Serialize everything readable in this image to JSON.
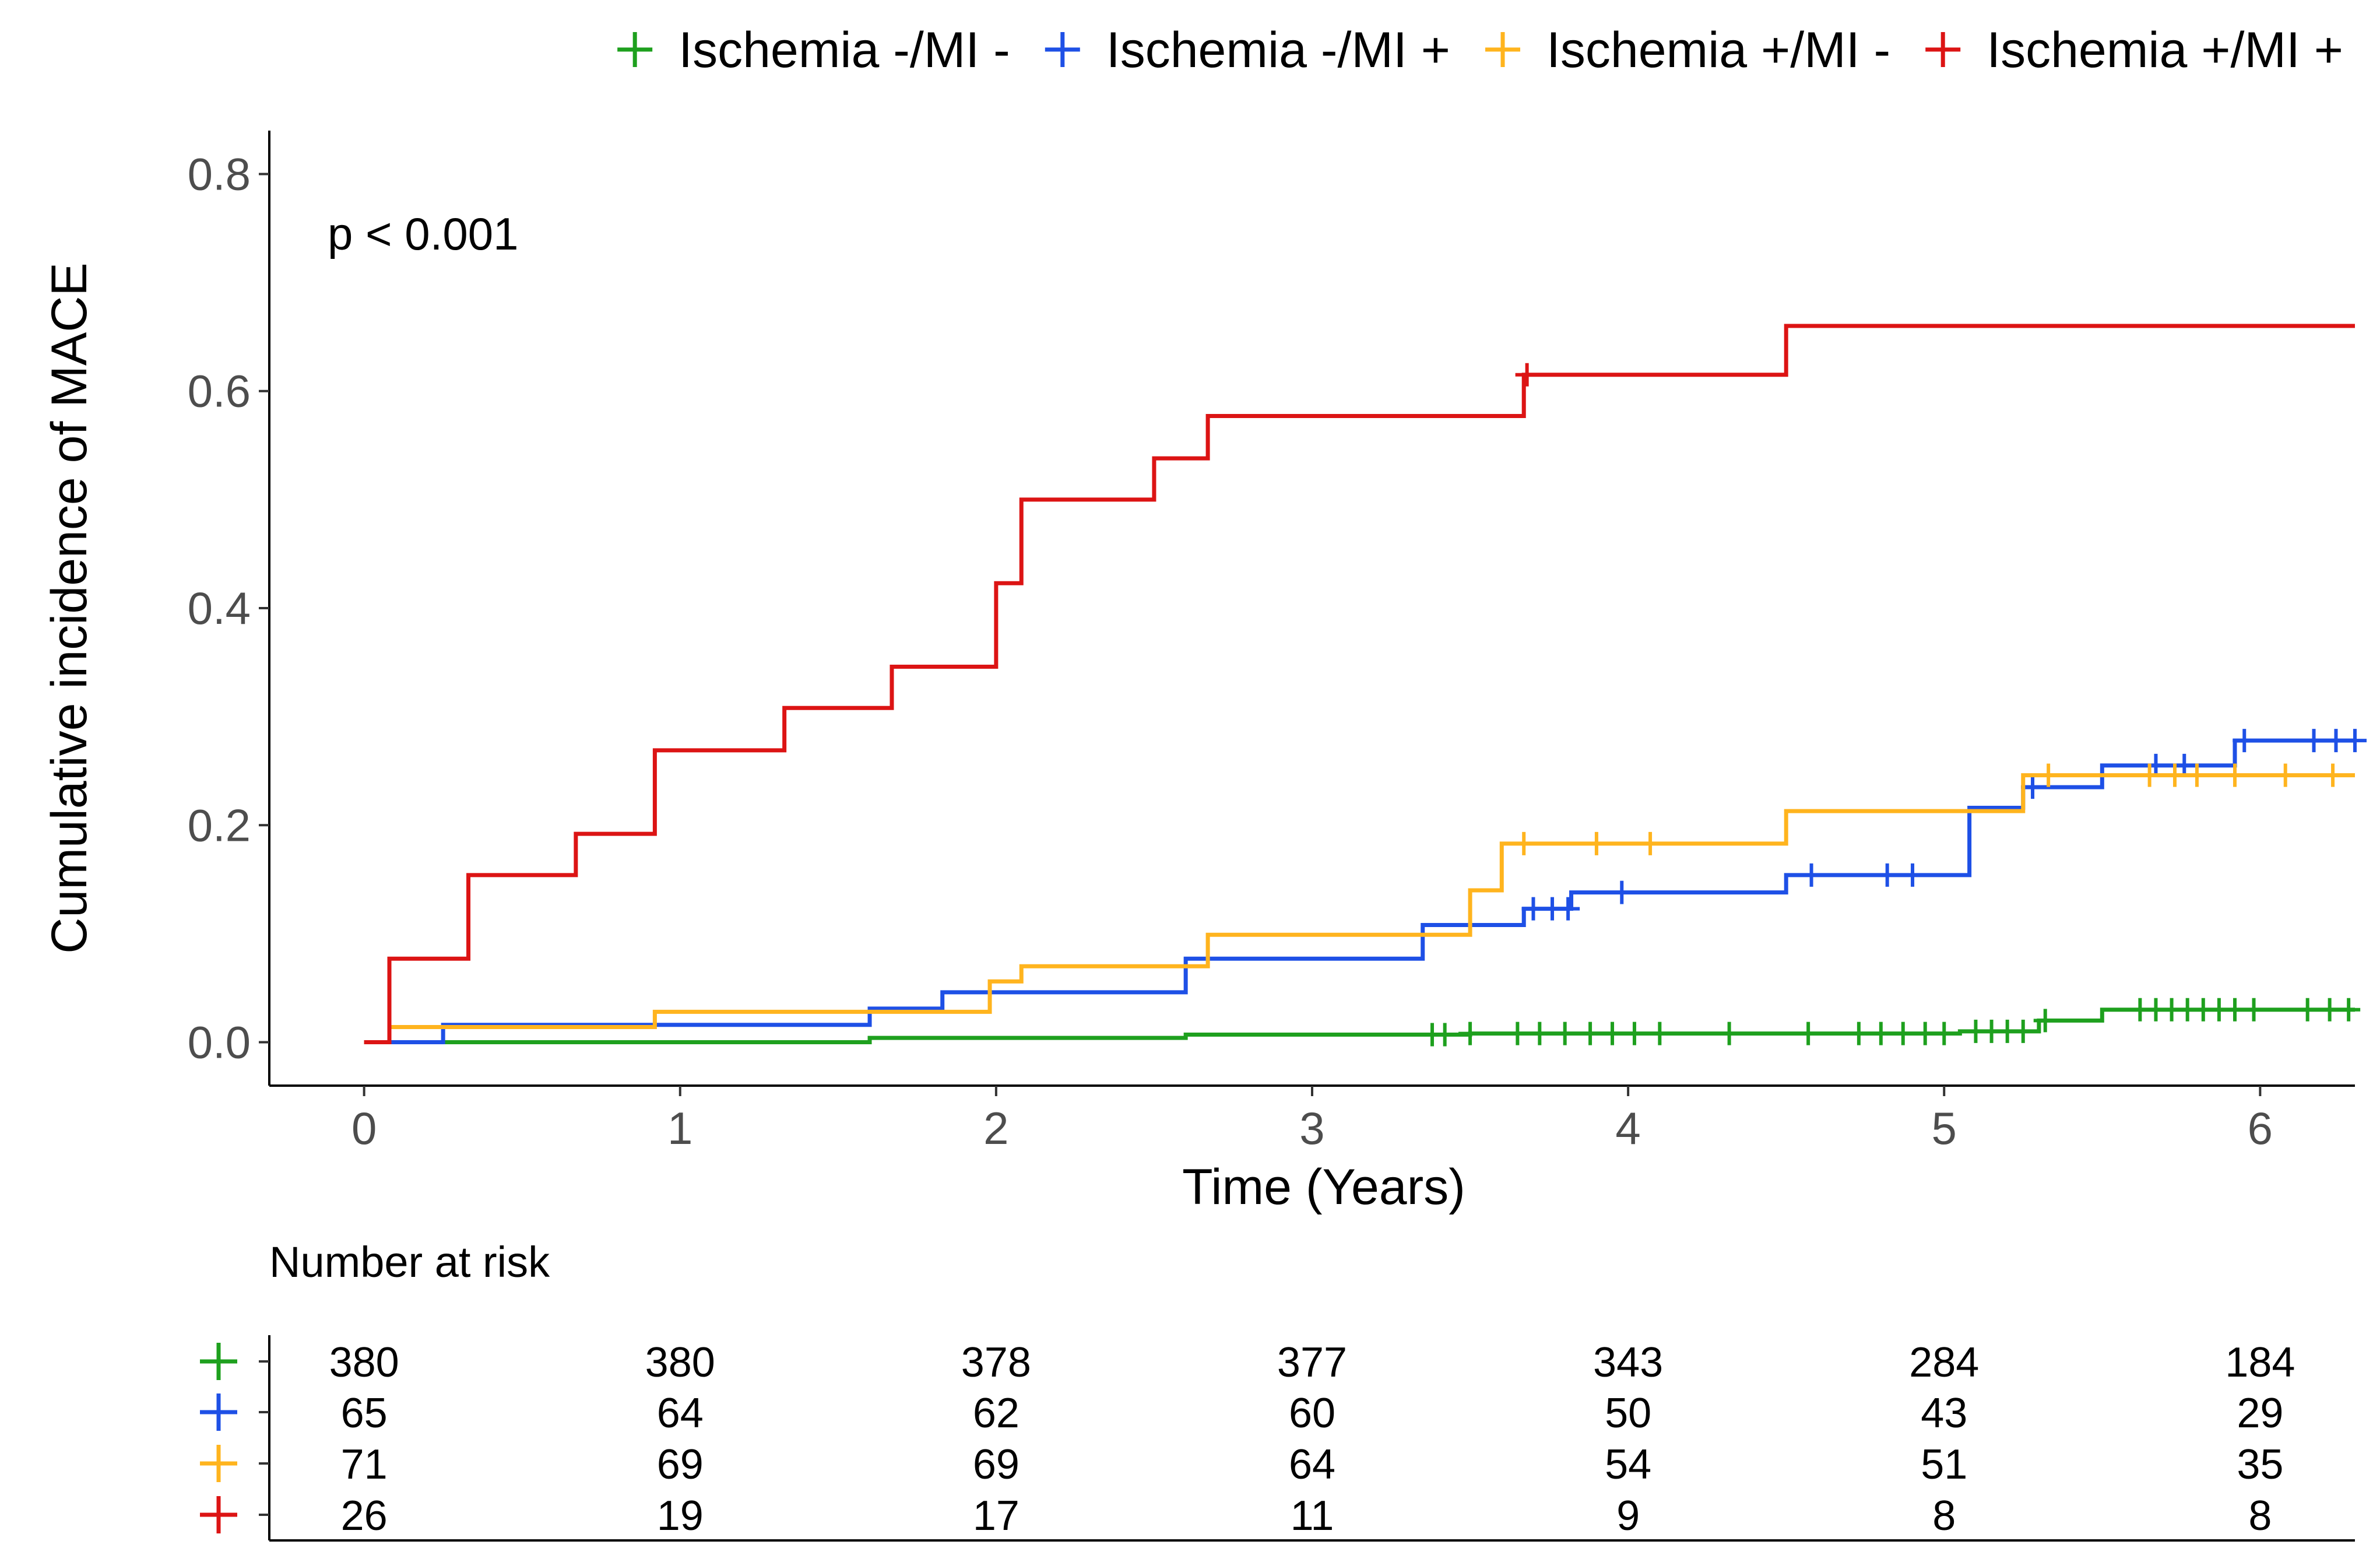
{
  "chart_data": {
    "type": "line",
    "subtype": "step",
    "title": "",
    "xlabel": "Time (Years)",
    "ylabel": "Cumulative incidence of MACE",
    "xlim": [
      -0.3,
      6.3
    ],
    "ylim": [
      -0.04,
      0.84
    ],
    "xticks": [
      0,
      1,
      2,
      3,
      4,
      5,
      6
    ],
    "yticks": [
      0.0,
      0.2,
      0.4,
      0.6,
      0.8
    ],
    "xtick_labels": [
      "0",
      "1",
      "2",
      "3",
      "4",
      "5",
      "6"
    ],
    "ytick_labels": [
      "0.0",
      "0.2",
      "0.4",
      "0.6",
      "0.8"
    ],
    "grid": false,
    "legend_position": "top-right",
    "annotation": "p < 0.001",
    "series": [
      {
        "name": "Ischemia -/MI -",
        "color": "#1ea01e",
        "steps": [
          [
            0,
            0
          ],
          [
            1.6,
            0.004
          ],
          [
            2.6,
            0.007
          ],
          [
            3.5,
            0.008
          ],
          [
            5.05,
            0.01
          ],
          [
            5.3,
            0.02
          ],
          [
            5.5,
            0.03
          ],
          [
            6.3,
            0.03
          ]
        ],
        "censor": [
          3.38,
          3.42,
          3.5,
          3.65,
          3.72,
          3.8,
          3.88,
          3.95,
          4.02,
          4.1,
          4.32,
          4.57,
          4.73,
          4.8,
          4.87,
          4.94,
          5.0,
          5.1,
          5.15,
          5.2,
          5.25,
          5.32,
          5.62,
          5.67,
          5.72,
          5.77,
          5.82,
          5.87,
          5.92,
          5.98,
          6.15,
          6.22,
          6.28
        ]
      },
      {
        "name": "Ischemia -/MI +",
        "color": "#1e50e6",
        "steps": [
          [
            0,
            0
          ],
          [
            0.25,
            0.016
          ],
          [
            1.6,
            0.031
          ],
          [
            1.83,
            0.046
          ],
          [
            2.6,
            0.077
          ],
          [
            3.35,
            0.108
          ],
          [
            3.67,
            0.123
          ],
          [
            3.82,
            0.138
          ],
          [
            4.5,
            0.154
          ],
          [
            5.08,
            0.216
          ],
          [
            5.25,
            0.235
          ],
          [
            5.5,
            0.255
          ],
          [
            5.92,
            0.278
          ],
          [
            6.3,
            0.278
          ]
        ],
        "censor": [
          3.7,
          3.76,
          3.81,
          3.98,
          4.58,
          4.82,
          4.9,
          5.28,
          5.67,
          5.76,
          5.95,
          6.17,
          6.24,
          6.3
        ]
      },
      {
        "name": "Ischemia +/MI -",
        "color": "#ffb41e",
        "steps": [
          [
            0,
            0
          ],
          [
            0.08,
            0.014
          ],
          [
            0.92,
            0.028
          ],
          [
            1.98,
            0.056
          ],
          [
            2.08,
            0.07
          ],
          [
            2.67,
            0.099
          ],
          [
            3.5,
            0.14
          ],
          [
            3.6,
            0.183
          ],
          [
            4.5,
            0.213
          ],
          [
            5.25,
            0.246
          ],
          [
            6.3,
            0.246
          ]
        ],
        "censor": [
          3.67,
          3.9,
          4.07,
          5.33,
          5.65,
          5.73,
          5.8,
          5.92,
          6.08,
          6.23
        ]
      },
      {
        "name": "Ischemia +/MI +",
        "color": "#dc1414",
        "steps": [
          [
            0,
            0
          ],
          [
            0.08,
            0.077
          ],
          [
            0.33,
            0.154
          ],
          [
            0.67,
            0.192
          ],
          [
            0.92,
            0.269
          ],
          [
            1.33,
            0.308
          ],
          [
            1.67,
            0.346
          ],
          [
            2.0,
            0.423
          ],
          [
            2.08,
            0.5
          ],
          [
            2.5,
            0.538
          ],
          [
            2.67,
            0.577
          ],
          [
            3.67,
            0.615
          ],
          [
            4.5,
            0.66
          ],
          [
            6.3,
            0.66
          ]
        ],
        "censor": [
          3.68
        ]
      }
    ],
    "risk_table": {
      "title": "Number at risk",
      "times": [
        0,
        1,
        2,
        3,
        4,
        5,
        6
      ],
      "rows": [
        {
          "name": "Ischemia -/MI -",
          "color": "#1ea01e",
          "values": [
            380,
            380,
            378,
            377,
            343,
            284,
            184
          ]
        },
        {
          "name": "Ischemia -/MI +",
          "color": "#1e50e6",
          "values": [
            65,
            64,
            62,
            60,
            50,
            43,
            29
          ]
        },
        {
          "name": "Ischemia +/MI -",
          "color": "#ffb41e",
          "values": [
            71,
            69,
            69,
            64,
            54,
            51,
            35
          ]
        },
        {
          "name": "Ischemia +/MI +",
          "color": "#dc1414",
          "values": [
            26,
            19,
            17,
            11,
            9,
            8,
            8
          ]
        }
      ]
    }
  }
}
